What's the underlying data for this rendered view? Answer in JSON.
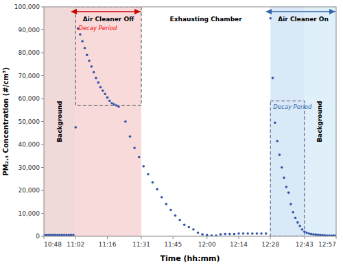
{
  "chart_data": {
    "type": "scatter",
    "title": "",
    "xlabel": "Time (hh:mm)",
    "ylabel": "PM₂.₅ Concentration (#/cm³)",
    "color": "#3355aa",
    "grid": false,
    "xlim": [
      0,
      129
    ],
    "xticks": [
      {
        "value": 0,
        "label": "10:48"
      },
      {
        "value": 14,
        "label": "11:02"
      },
      {
        "value": 28,
        "label": "11:16"
      },
      {
        "value": 43,
        "label": "11:31"
      },
      {
        "value": 57,
        "label": "11:45"
      },
      {
        "value": 72,
        "label": "12:00"
      },
      {
        "value": 86,
        "label": "12:14"
      },
      {
        "value": 100,
        "label": "12:28"
      },
      {
        "value": 115,
        "label": "12:43"
      },
      {
        "value": 129,
        "label": "12:57"
      }
    ],
    "ylim": [
      0,
      100000
    ],
    "yticks": [
      0,
      {
        "value": 10000,
        "label": "10,000"
      },
      {
        "value": 20000,
        "label": "20,000"
      },
      {
        "value": 30000,
        "label": "30,000"
      },
      {
        "value": 40000,
        "label": "40,000"
      },
      {
        "value": 50000,
        "label": "50,000"
      },
      {
        "value": 60000,
        "label": "60,000"
      },
      {
        "value": 70000,
        "label": "70,000"
      },
      {
        "value": 80000,
        "label": "80,000"
      },
      {
        "value": 90000,
        "label": "90,000"
      },
      {
        "value": 100000,
        "label": "100,000"
      }
    ],
    "regions": [
      {
        "start": 0,
        "end": 14,
        "color": "#e8c4c4",
        "label": "Background"
      },
      {
        "start": 14,
        "end": 43,
        "color": "#f5c6c6"
      },
      {
        "start": 100,
        "end": 115,
        "color": "#c5ddf5"
      },
      {
        "start": 115,
        "end": 129,
        "color": "#d0e8f8",
        "label": "Background"
      }
    ],
    "boxes": [
      {
        "x": [
          14,
          43
        ],
        "y": [
          57000,
          100000
        ],
        "color": "#666666",
        "label": "Decay Period",
        "label_color": "red"
      },
      {
        "x": [
          100,
          115
        ],
        "y": [
          0,
          59000
        ],
        "color": "#666699",
        "label": "Decay Period",
        "label_color": "#3366aa"
      }
    ],
    "annotations": [
      {
        "text": "Air Cleaner Off",
        "start": 14,
        "end": 43,
        "color": "#cc0000"
      },
      {
        "text": "Exhausting Chamber",
        "start": 43,
        "end": 100
      },
      {
        "text": "Air Cleaner On",
        "start": 100,
        "end": 129,
        "color": "#3366aa"
      }
    ],
    "x": [
      0,
      1,
      2,
      3,
      4,
      5,
      6,
      7,
      8,
      9,
      10,
      11,
      12,
      13,
      14,
      15,
      16,
      17,
      18,
      19,
      20,
      21,
      22,
      23,
      24,
      25,
      26,
      27,
      28,
      29,
      30,
      31,
      32,
      33,
      36,
      38,
      40,
      42,
      44,
      46,
      48,
      50,
      52,
      54,
      56,
      58,
      60,
      62,
      64,
      66,
      68,
      70,
      72,
      74,
      76,
      78,
      80,
      82,
      84,
      86,
      88,
      90,
      92,
      94,
      96,
      98,
      100,
      101,
      102,
      103,
      104,
      105,
      106,
      107,
      108,
      109,
      110,
      111,
      112,
      113,
      114,
      115,
      116,
      117,
      118,
      119,
      120,
      121,
      122,
      123,
      124,
      125,
      126,
      127,
      128,
      129
    ],
    "values": [
      500,
      500,
      500,
      500,
      500,
      500,
      500,
      500,
      500,
      500,
      500,
      500,
      500,
      500,
      47500,
      90500,
      88000,
      85000,
      82000,
      79000,
      76500,
      74000,
      71500,
      69000,
      67000,
      65000,
      63500,
      62000,
      60500,
      59000,
      58000,
      57500,
      57000,
      56500,
      50000,
      43500,
      38500,
      34500,
      30500,
      27000,
      23500,
      20500,
      17000,
      14000,
      11500,
      9000,
      7000,
      5000,
      4000,
      3000,
      1500,
      800,
      500,
      300,
      300,
      800,
      1000,
      1000,
      1000,
      1200,
      1200,
      1200,
      1200,
      1200,
      1200,
      1200,
      95000,
      69000,
      49500,
      41500,
      35500,
      30000,
      25500,
      21500,
      19000,
      14000,
      10500,
      8000,
      6000,
      4500,
      3000,
      2000,
      1500,
      1200,
      1000,
      800,
      700,
      600,
      500,
      400,
      350,
      300,
      300,
      300,
      300,
      300
    ]
  }
}
